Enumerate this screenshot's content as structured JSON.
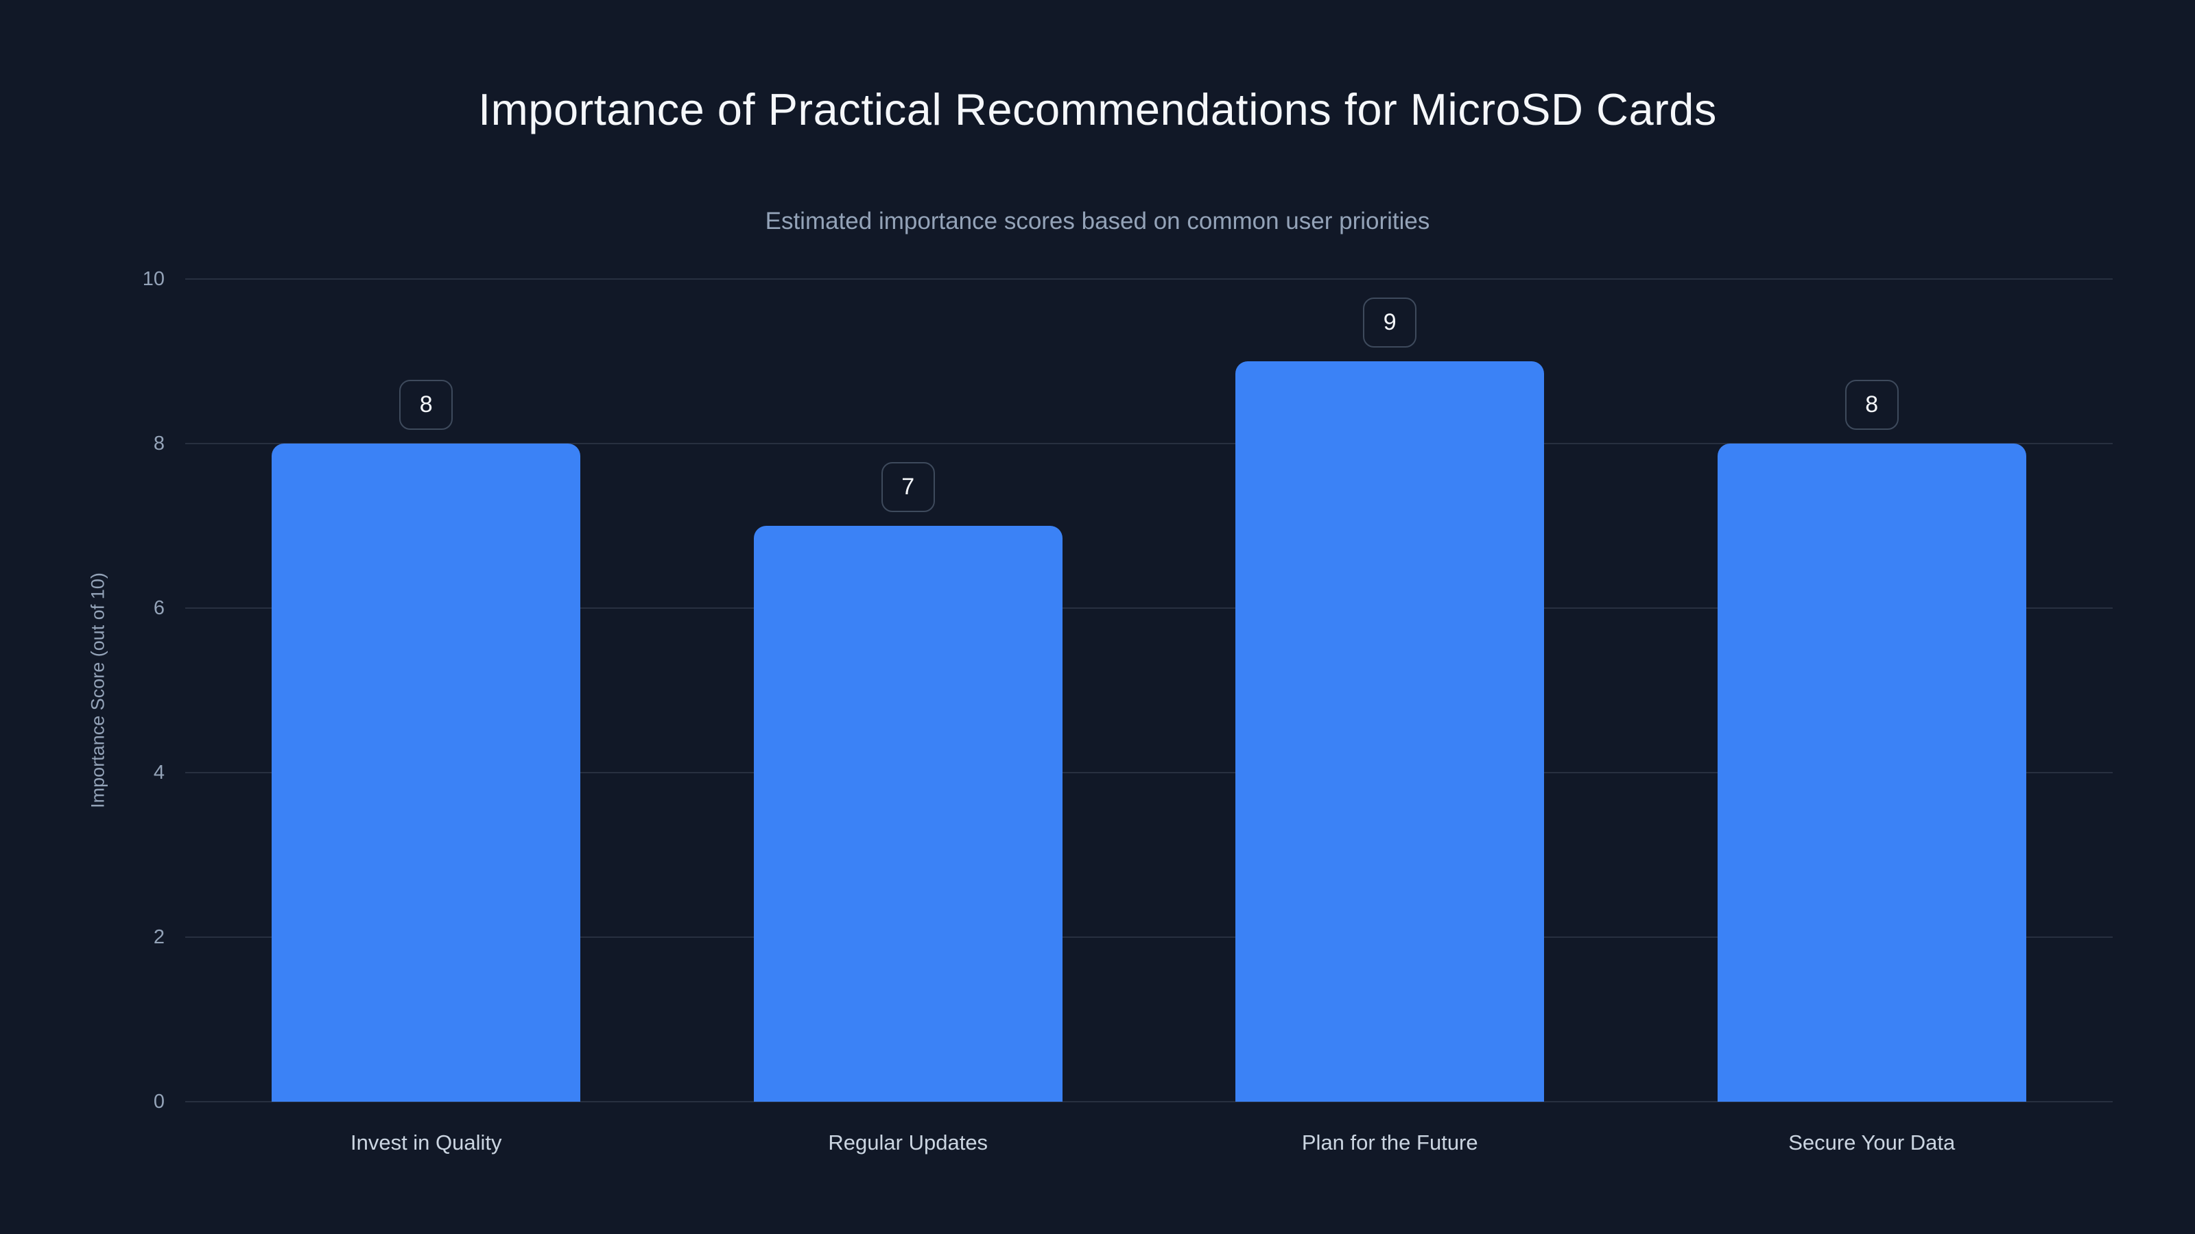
{
  "chart_data": {
    "type": "bar",
    "title": "Importance of Practical Recommendations for MicroSD Cards",
    "subtitle": "Estimated importance scores based on common user priorities",
    "categories": [
      "Invest in Quality",
      "Regular Updates",
      "Plan for the Future",
      "Secure Your Data"
    ],
    "values": [
      8,
      7,
      9,
      8
    ],
    "value_labels": [
      "8",
      "7",
      "9",
      "8"
    ],
    "xlabel": "",
    "ylabel": "Importance Score (out of 10)",
    "ylim": [
      0,
      10
    ],
    "yticks": [
      0,
      2,
      4,
      6,
      8,
      10
    ],
    "grid": true,
    "legend": "none",
    "bar_corner_radius": "rounded-top"
  },
  "colors": {
    "background": "#111827",
    "bar": "#3b82f6",
    "grid": "rgba(148,163,184,0.18)",
    "title_text": "#f5f7fa",
    "subtitle_text": "#94a3b8",
    "tick_text": "#94a3b8",
    "xlabel_text": "#cbd5e1",
    "value_badge_border": "#3e4a5c",
    "value_text": "#f5f7fa"
  }
}
